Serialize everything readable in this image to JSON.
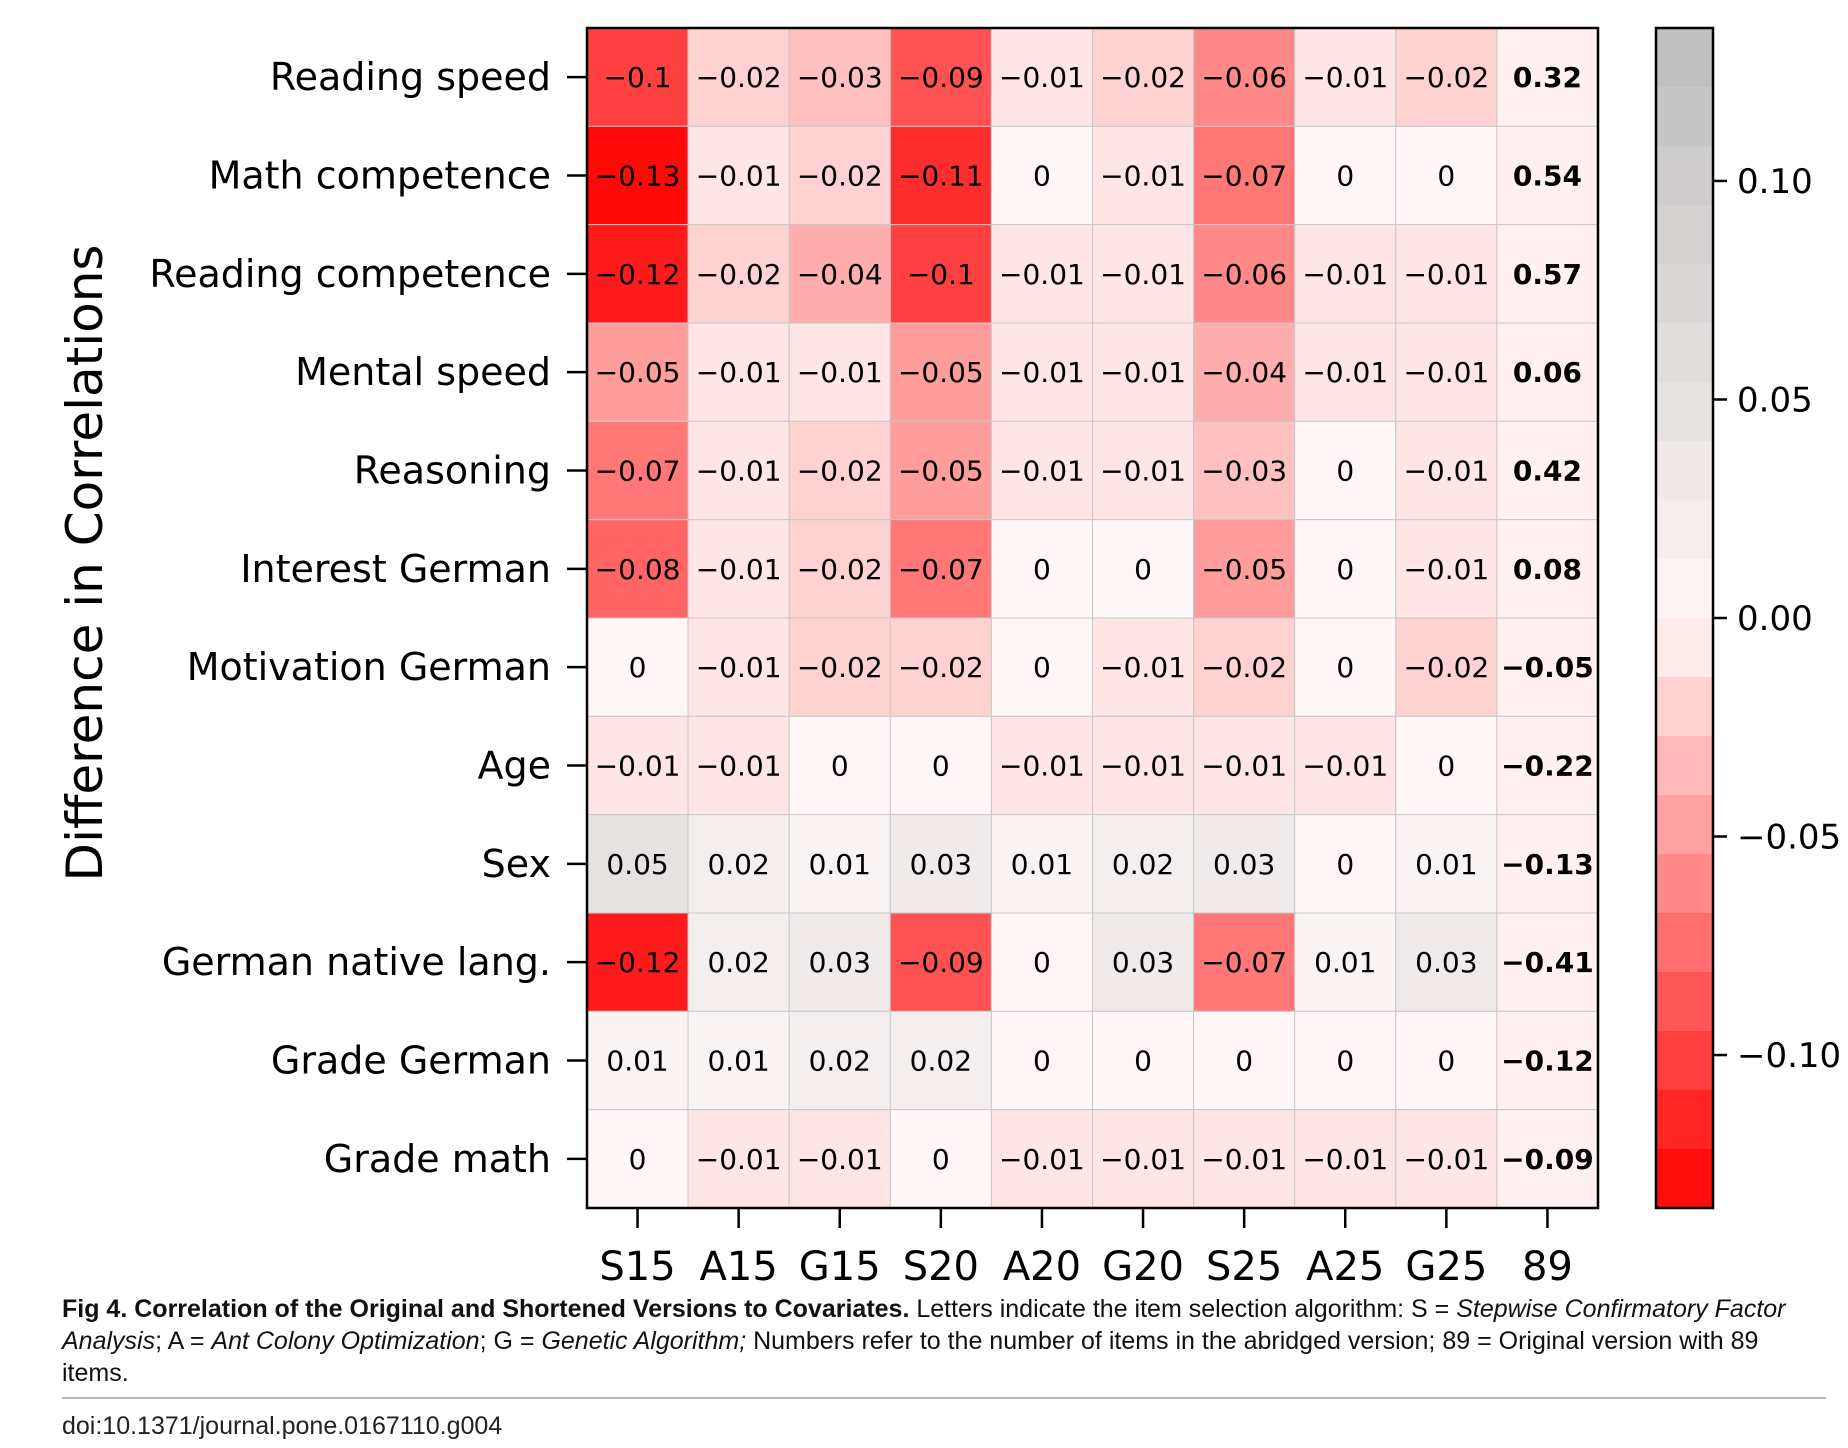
{
  "chart_data": {
    "type": "heatmap",
    "ylabel": "Difference in Correlations",
    "columns": [
      "S15",
      "A15",
      "G15",
      "S20",
      "A20",
      "G20",
      "S25",
      "A25",
      "G25",
      "89"
    ],
    "rows": [
      "Reading speed",
      "Math competence",
      "Reading competence",
      "Mental speed",
      "Reasoning",
      "Interest German",
      "Motivation German",
      "Age",
      "Sex",
      "German native lang.",
      "Grade German",
      "Grade math"
    ],
    "values": [
      [
        -0.1,
        -0.02,
        -0.03,
        -0.09,
        -0.01,
        -0.02,
        -0.06,
        -0.01,
        -0.02,
        0.32
      ],
      [
        -0.13,
        -0.01,
        -0.02,
        -0.11,
        0,
        -0.01,
        -0.07,
        0,
        0,
        0.54
      ],
      [
        -0.12,
        -0.02,
        -0.04,
        -0.1,
        -0.01,
        -0.01,
        -0.06,
        -0.01,
        -0.01,
        0.57
      ],
      [
        -0.05,
        -0.01,
        -0.01,
        -0.05,
        -0.01,
        -0.01,
        -0.04,
        -0.01,
        -0.01,
        0.06
      ],
      [
        -0.07,
        -0.01,
        -0.02,
        -0.05,
        -0.01,
        -0.01,
        -0.03,
        0,
        -0.01,
        0.42
      ],
      [
        -0.08,
        -0.01,
        -0.02,
        -0.07,
        0,
        0,
        -0.05,
        0,
        -0.01,
        0.08
      ],
      [
        0,
        -0.01,
        -0.02,
        -0.02,
        0,
        -0.01,
        -0.02,
        0,
        -0.02,
        -0.05
      ],
      [
        -0.01,
        -0.01,
        0,
        0,
        -0.01,
        -0.01,
        -0.01,
        -0.01,
        0,
        -0.22
      ],
      [
        0.05,
        0.02,
        0.01,
        0.03,
        0.01,
        0.02,
        0.03,
        0,
        0.01,
        -0.13
      ],
      [
        -0.12,
        0.02,
        0.03,
        -0.09,
        0,
        0.03,
        -0.07,
        0.01,
        0.03,
        -0.41
      ],
      [
        0.01,
        0.01,
        0.02,
        0.02,
        0,
        0,
        0,
        0,
        0,
        -0.12
      ],
      [
        0,
        -0.01,
        -0.01,
        0,
        -0.01,
        -0.01,
        -0.01,
        -0.01,
        -0.01,
        -0.09
      ]
    ],
    "bold_column": "89",
    "colorbar": {
      "range": [
        -0.135,
        0.135
      ],
      "ticks": [
        0.1,
        0.05,
        0.0,
        -0.05,
        -0.1
      ],
      "tick_labels": [
        "0.10",
        "0.05",
        "0.00",
        "−0.05",
        "−0.10"
      ],
      "negative_color": "#ff0000",
      "zero_color": "#fff7f7",
      "positive_color": "#bdbdbd",
      "steps": 20
    }
  },
  "caption": {
    "label": "Fig 4.",
    "title": "Correlation of the Original and Shortened Versions to Covariates.",
    "text_1": " Letters indicate the item selection algorithm: S = ",
    "s_name": "Stepwise Confirmatory Factor Analysis",
    "text_2": "; A = ",
    "a_name": "Ant Colony Optimization",
    "text_3": "; G = ",
    "g_name": "Genetic Algorithm;",
    "text_4": " Numbers refer to the number of items in the abridged version; 89 = Original version with 89 items."
  },
  "doi": "doi:10.1371/journal.pone.0167110.g004"
}
